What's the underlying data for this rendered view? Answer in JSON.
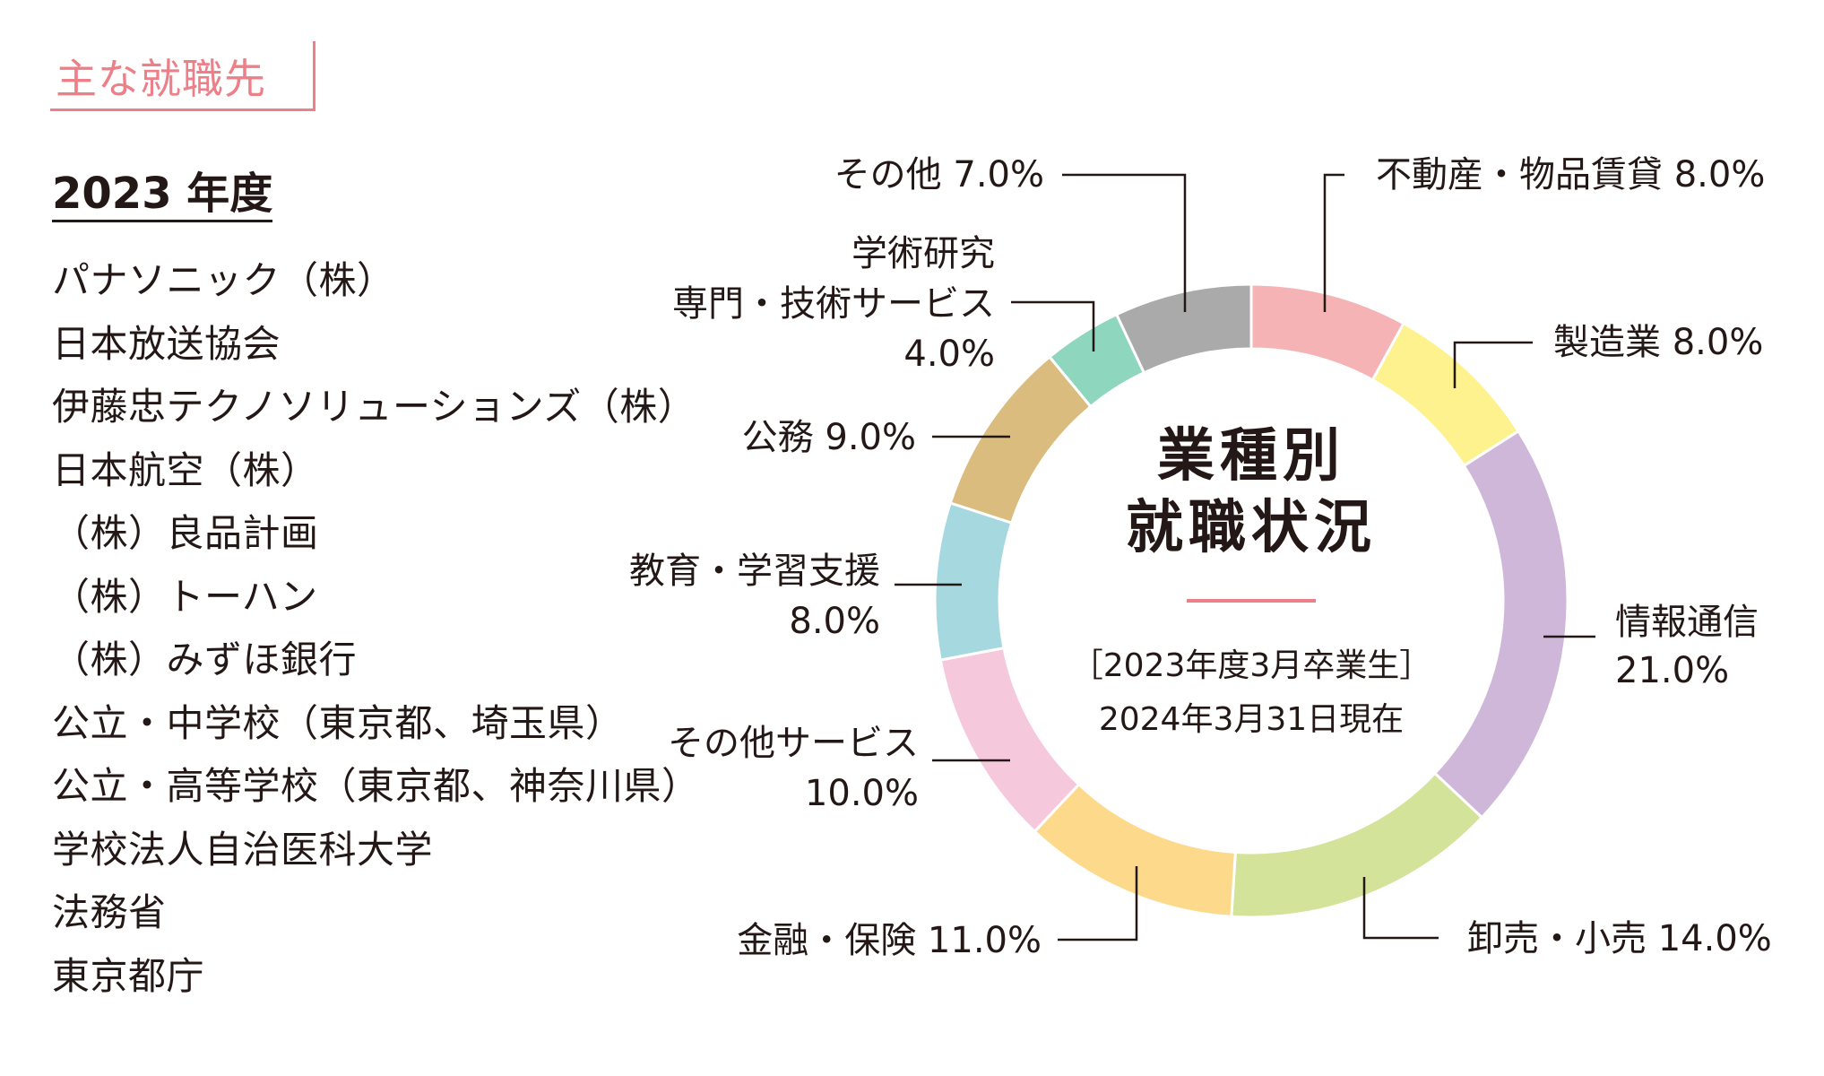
{
  "header": {
    "title": "主な就職先"
  },
  "year_heading": "2023 年度",
  "companies": [
    "パナソニック（株）",
    "日本放送協会",
    "伊藤忠テクノソリューションズ（株）",
    "日本航空（株）",
    "（株）良品計画",
    "（株）トーハン",
    "（株）みずほ銀行",
    "公立・中学校（東京都、埼玉県）",
    "公立・高等学校（東京都、神奈川県）",
    "学校法人自治医科大学",
    "法務省",
    "東京都庁"
  ],
  "chart_data": {
    "type": "pie",
    "title_lines": [
      "業種別",
      "就職状況"
    ],
    "subtitle_lines": [
      "［2023年度3月卒業生］",
      "2024年3月31日現在"
    ],
    "accent_line_color": "#ec7f87",
    "slices": [
      {
        "label_lines": [
          "不動産・物品賃貸 8.0%"
        ],
        "value": 8.0,
        "color": "#f5b3b5"
      },
      {
        "label_lines": [
          "製造業 8.0%"
        ],
        "value": 8.0,
        "color": "#fdf28d"
      },
      {
        "label_lines": [
          "情報通信",
          "21.0%"
        ],
        "value": 21.0,
        "color": "#cfb7d9"
      },
      {
        "label_lines": [
          "卸売・小売 14.0%"
        ],
        "value": 14.0,
        "color": "#d3e39a"
      },
      {
        "label_lines": [
          "金融・保険 11.0%"
        ],
        "value": 11.0,
        "color": "#fdd98b"
      },
      {
        "label_lines": [
          "その他サービス",
          "10.0%"
        ],
        "value": 10.0,
        "color": "#f6c8dc"
      },
      {
        "label_lines": [
          "教育・学習支援",
          "8.0%"
        ],
        "value": 8.0,
        "color": "#a6d8e0"
      },
      {
        "label_lines": [
          "公務 9.0%"
        ],
        "value": 9.0,
        "color": "#dabc7e"
      },
      {
        "label_lines": [
          "学術研究",
          "専門・技術サービス",
          "4.0%"
        ],
        "value": 4.0,
        "color": "#8fd6bf"
      },
      {
        "label_lines": [
          "その他 7.0%"
        ],
        "value": 7.0,
        "color": "#a9aaa9"
      }
    ]
  }
}
